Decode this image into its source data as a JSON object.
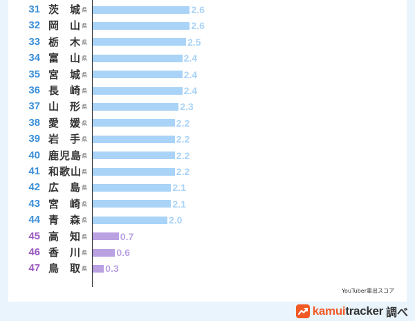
{
  "chart_data": {
    "type": "bar",
    "orientation": "horizontal",
    "note": "YouTuber輩出スコア",
    "suffix": "県",
    "xlim": [
      0,
      3.5
    ],
    "colors": {
      "rank_blue": "#3a8fd9",
      "rank_purple": "#9b59c2",
      "bar_blue": "#a9d3f7",
      "bar_purple": "#b9a1e2",
      "val_blue": "#a9d3f7",
      "val_purple": "#b9a1e2"
    },
    "rows": [
      {
        "rank": "31",
        "pref": "茨城",
        "value": 2.6,
        "label": "2.6",
        "group": "blue"
      },
      {
        "rank": "32",
        "pref": "岡山",
        "value": 2.6,
        "label": "2.6",
        "group": "blue"
      },
      {
        "rank": "33",
        "pref": "栃木",
        "value": 2.5,
        "label": "2.5",
        "group": "blue"
      },
      {
        "rank": "34",
        "pref": "富山",
        "value": 2.4,
        "label": "2.4",
        "group": "blue"
      },
      {
        "rank": "35",
        "pref": "宮城",
        "value": 2.4,
        "label": "2.4",
        "group": "blue"
      },
      {
        "rank": "36",
        "pref": "長崎",
        "value": 2.4,
        "label": "2.4",
        "group": "blue"
      },
      {
        "rank": "37",
        "pref": "山形",
        "value": 2.3,
        "label": "2.3",
        "group": "blue"
      },
      {
        "rank": "38",
        "pref": "愛媛",
        "value": 2.2,
        "label": "2.2",
        "group": "blue"
      },
      {
        "rank": "39",
        "pref": "岩手",
        "value": 2.2,
        "label": "2.2",
        "group": "blue"
      },
      {
        "rank": "40",
        "pref": "鹿児島",
        "value": 2.2,
        "label": "2.2",
        "group": "blue"
      },
      {
        "rank": "41",
        "pref": "和歌山",
        "value": 2.2,
        "label": "2.2",
        "group": "blue"
      },
      {
        "rank": "42",
        "pref": "広島",
        "value": 2.1,
        "label": "2.1",
        "group": "blue"
      },
      {
        "rank": "43",
        "pref": "宮崎",
        "value": 2.1,
        "label": "2.1",
        "group": "blue"
      },
      {
        "rank": "44",
        "pref": "青森",
        "value": 2.0,
        "label": "2.0",
        "group": "blue"
      },
      {
        "rank": "45",
        "pref": "高知",
        "value": 0.7,
        "label": "0.7",
        "group": "purple"
      },
      {
        "rank": "46",
        "pref": "香川",
        "value": 0.6,
        "label": "0.6",
        "group": "purple"
      },
      {
        "rank": "47",
        "pref": "鳥取",
        "value": 0.3,
        "label": "0.3",
        "group": "purple"
      }
    ]
  },
  "footer": {
    "brand_main": "kamui",
    "brand_rest": "tracker",
    "brand_tail": "調べ",
    "logo_icon": "trend-chart-icon",
    "logo_color": "#f15a24"
  }
}
